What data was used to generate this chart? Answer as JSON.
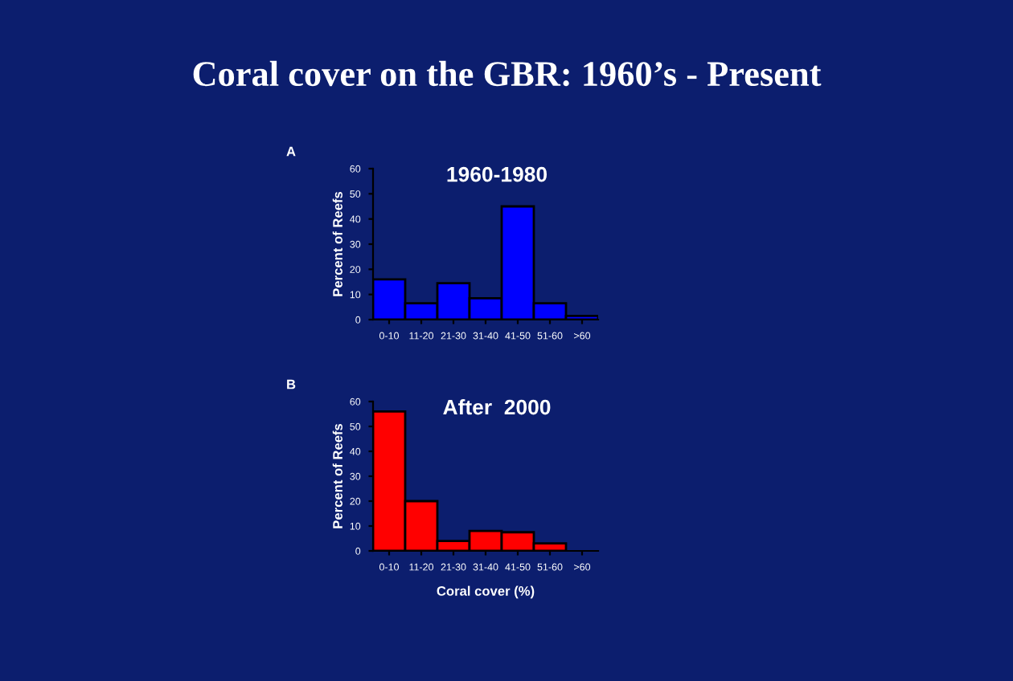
{
  "chart_data": [
    {
      "type": "bar",
      "title": "1960-1980",
      "ylabel": "Percent of Reefs",
      "categories": [
        "0-10",
        "11-20",
        "21-30",
        "31-40",
        "41-50",
        "51-60",
        ">60"
      ],
      "values": [
        16,
        6.5,
        14.5,
        8.5,
        45,
        6.5,
        1.5
      ],
      "color": "#0000ff",
      "ylim": [
        0,
        60
      ],
      "yticks": [
        0,
        10,
        20,
        30,
        40,
        50,
        60
      ],
      "grid": false,
      "annotations": [
        "Coral cover on the GBR: 1960’s - Present",
        "A"
      ]
    },
    {
      "type": "bar",
      "title": "After  2000",
      "ylabel": "Percent of Reefs",
      "xlabel": "Coral cover (%)",
      "categories": [
        "0-10",
        "11-20",
        "21-30",
        "31-40",
        "41-50",
        "51-60",
        ">60"
      ],
      "values": [
        56,
        20,
        4,
        8,
        7.5,
        3,
        0
      ],
      "color": "#ff0000",
      "ylim": [
        0,
        60
      ],
      "yticks": [
        0,
        10,
        20,
        30,
        40,
        50,
        60
      ],
      "grid": false,
      "annotations": [
        "B"
      ]
    }
  ]
}
